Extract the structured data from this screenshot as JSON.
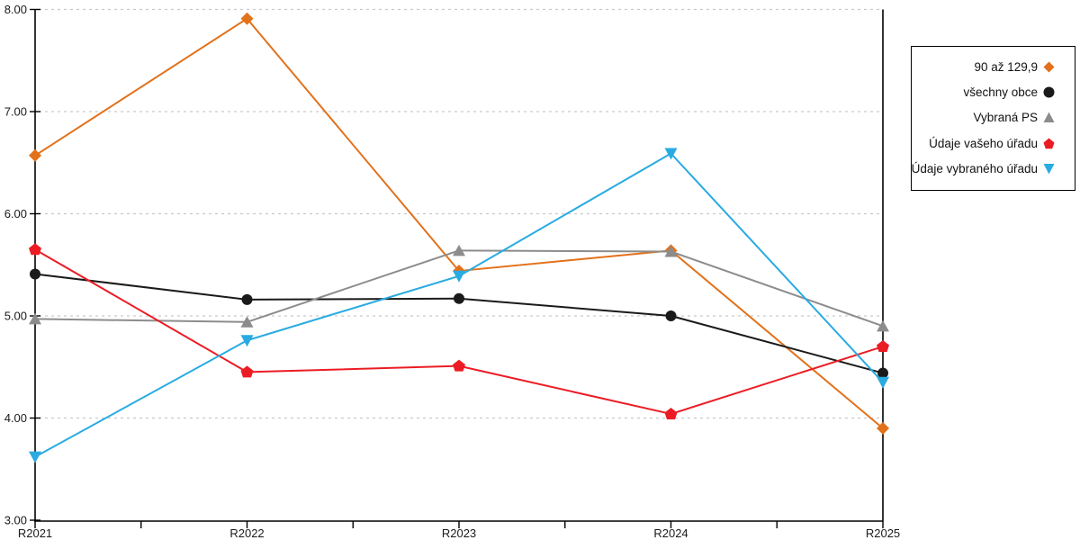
{
  "chart_data": {
    "type": "line",
    "title": "",
    "xlabel": "",
    "ylabel": "",
    "categories": [
      "R2021",
      "R2022",
      "R2023",
      "R2024",
      "R2025"
    ],
    "series": [
      {
        "name": "90 až 129,9",
        "marker": "diamond",
        "color": "#E2711B",
        "values": [
          6.57,
          7.91,
          5.44,
          5.64,
          3.9
        ]
      },
      {
        "name": "všechny obce",
        "marker": "circle",
        "color": "#1A1A1A",
        "values": [
          5.41,
          5.16,
          5.17,
          5.0,
          4.44
        ]
      },
      {
        "name": "Vybraná PS",
        "marker": "triangle-up",
        "color": "#8C8C8C",
        "values": [
          4.97,
          4.94,
          5.64,
          5.63,
          4.9
        ]
      },
      {
        "name": "Údaje vašeho úřadu",
        "marker": "pentagon",
        "color": "#EC1C24",
        "values": [
          5.65,
          4.45,
          4.51,
          4.04,
          4.7
        ]
      },
      {
        "name": "Údaje vybraného úřadu",
        "marker": "triangle-down",
        "color": "#29ABE2",
        "values": [
          3.62,
          4.76,
          5.39,
          6.59,
          4.35
        ]
      }
    ],
    "ylim": [
      3,
      8
    ],
    "ytick_step": 1,
    "ytick_labels": [
      "3.00",
      "4.00",
      "5.00",
      "6.00",
      "7.00",
      "8.00"
    ],
    "grid": "horizontal-dashed",
    "legend_position": "right-outside"
  },
  "colors": {
    "grid": "#C9C9C9",
    "axis": "#000000",
    "tick_label": "#1A1A1A",
    "background": "#FFFFFF",
    "legend_border": "#000000"
  }
}
